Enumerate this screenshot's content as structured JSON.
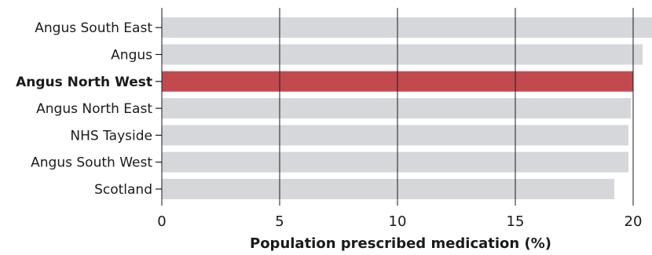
{
  "chart_data": {
    "type": "bar",
    "orientation": "horizontal",
    "categories": [
      "Angus South East",
      "Angus",
      "Angus North West",
      "Angus North East",
      "NHS Tayside",
      "Angus South West",
      "Scotland"
    ],
    "values": [
      20.8,
      20.4,
      20.0,
      19.9,
      19.8,
      19.8,
      19.2
    ],
    "highlight": "Angus North West",
    "xlabel": "Population prescribed medication (%)",
    "ylabel": "",
    "title": "",
    "xlim": [
      0,
      20.8
    ],
    "xticks": [
      0,
      5,
      10,
      15,
      20
    ],
    "grid": "vertical gridlines at ticks",
    "colors": {
      "bar": "#d5d7db",
      "highlight": "#c24a4e",
      "grid": "#1a1a1a",
      "text": "#1a1a1a"
    }
  }
}
